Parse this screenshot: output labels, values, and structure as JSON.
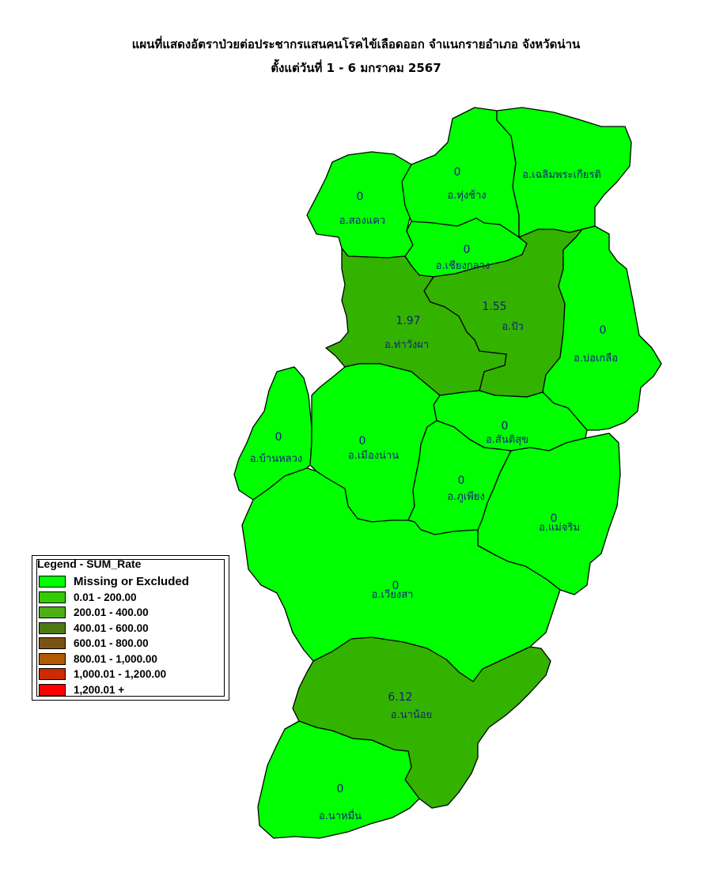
{
  "title": {
    "line1": "แผนที่แสดงอัตราป่วยต่อประชากรแสนคนโรคไข้เลือดออก จำแนกรายอำเภอ จังหวัดน่าน",
    "line2": "ตั้งแต่วันที่ 1  - 6 มกราคม 2567"
  },
  "legend": {
    "title": "Legend - SUM_Rate",
    "items": [
      {
        "label": "Missing or Excluded",
        "color": "#00ff00"
      },
      {
        "label": "0.01 - 200.00",
        "color": "#33cc00"
      },
      {
        "label": "200.01 - 400.00",
        "color": "#4caf14"
      },
      {
        "label": "400.01 - 600.00",
        "color": "#4d7a14"
      },
      {
        "label": "600.01 - 800.00",
        "color": "#7a5214"
      },
      {
        "label": "800.01 - 1,000.00",
        "color": "#b25a00"
      },
      {
        "label": "1,000.01 - 1,200.00",
        "color": "#cc2a00"
      },
      {
        "label": "1,200.01 +",
        "color": "#ff0000"
      }
    ]
  },
  "districts": [
    {
      "id": "songkhwae",
      "name": "อ.สองแคว",
      "value": "0",
      "color": "#00ff00"
    },
    {
      "id": "thungchang",
      "name": "อ.ทุ่งช้าง",
      "value": "0",
      "color": "#00ff00"
    },
    {
      "id": "chaloem",
      "name": "อ.เฉลิมพระเกียรติ",
      "value": "",
      "color": "#00ff00"
    },
    {
      "id": "chianglang",
      "name": "อ.เชียงกลาง",
      "value": "0",
      "color": "#00ff00"
    },
    {
      "id": "pua",
      "name": "อ.ปัว",
      "value": "1.55",
      "color": "#33b300"
    },
    {
      "id": "thawangpha",
      "name": "อ.ท่าวังผา",
      "value": "1.97",
      "color": "#33b300"
    },
    {
      "id": "boklua",
      "name": "อ.บ่อเกลือ",
      "value": "0",
      "color": "#00ff00"
    },
    {
      "id": "santisuk",
      "name": "อ.สันติสุข",
      "value": "0",
      "color": "#00ff00"
    },
    {
      "id": "banluang",
      "name": "อ.บ้านหลวง",
      "value": "0",
      "color": "#00ff00"
    },
    {
      "id": "mueang",
      "name": "อ.เมืองน่าน",
      "value": "0",
      "color": "#00ff00"
    },
    {
      "id": "phupiang",
      "name": "อ.ภูเพียง",
      "value": "0",
      "color": "#00ff00"
    },
    {
      "id": "maecharim",
      "name": "อ.แม่จริม",
      "value": "0",
      "color": "#00ff00"
    },
    {
      "id": "wiangsa",
      "name": "อ.เวียงสา",
      "value": "0",
      "color": "#00ff00"
    },
    {
      "id": "nanoi",
      "name": "อ.นาน้อย",
      "value": "6.12",
      "color": "#33b300"
    },
    {
      "id": "namuen",
      "name": "อ.นาหมื่น",
      "value": "0",
      "color": "#00ff00"
    }
  ]
}
